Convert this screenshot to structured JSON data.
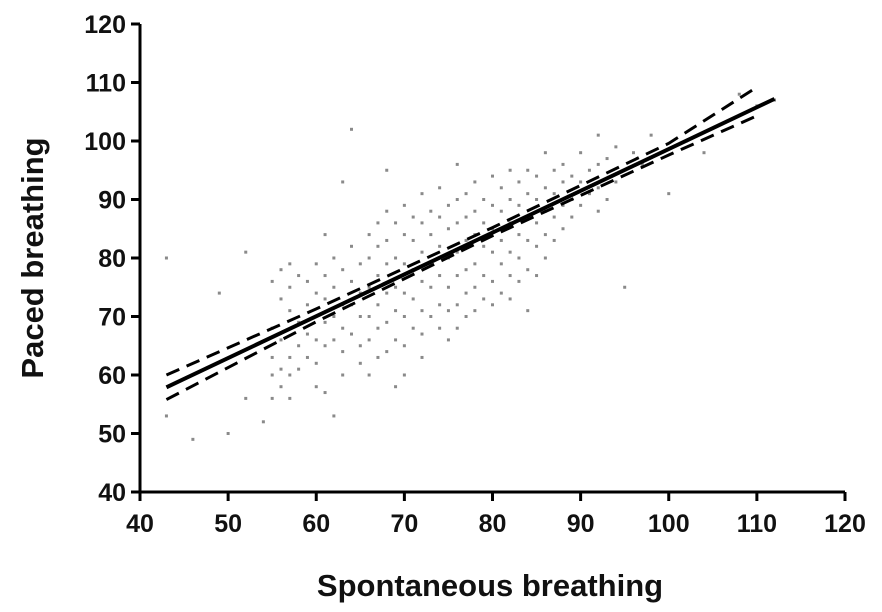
{
  "chart_data": {
    "type": "scatter",
    "title": "",
    "xlabel": "Spontaneous breathing",
    "ylabel": "Paced breathing",
    "xlim": [
      40,
      120
    ],
    "ylim": [
      40,
      120
    ],
    "xticks": [
      40,
      50,
      60,
      70,
      80,
      90,
      100,
      110,
      120
    ],
    "yticks": [
      40,
      50,
      60,
      70,
      80,
      90,
      100,
      110,
      120
    ],
    "grid": false,
    "legend": "none",
    "colors": {
      "points": "#8a8a8a",
      "fit": "#000000",
      "confidence": "#000000"
    },
    "regression": {
      "x_range": [
        43,
        112
      ],
      "y_at_x_start": 57.9,
      "y_at_x_end": 107.2
    },
    "confidence_band": {
      "upper": [
        [
          43,
          60.0
        ],
        [
          60,
          71.3
        ],
        [
          80,
          85.2
        ],
        [
          100,
          99.6
        ],
        [
          110,
          109.2
        ]
      ],
      "lower": [
        [
          43,
          55.8
        ],
        [
          60,
          69.1
        ],
        [
          80,
          83.8
        ],
        [
          100,
          97.6
        ],
        [
          110,
          104.3
        ]
      ]
    },
    "points": [
      [
        43,
        80
      ],
      [
        43,
        53
      ],
      [
        46,
        49
      ],
      [
        49,
        74
      ],
      [
        50,
        50
      ],
      [
        52,
        81
      ],
      [
        52,
        56
      ],
      [
        54,
        52
      ],
      [
        55,
        76
      ],
      [
        55,
        68
      ],
      [
        55,
        63
      ],
      [
        55,
        60
      ],
      [
        55,
        56
      ],
      [
        56,
        78
      ],
      [
        56,
        73
      ],
      [
        56,
        66
      ],
      [
        56,
        61
      ],
      [
        56,
        58
      ],
      [
        57,
        79
      ],
      [
        57,
        75
      ],
      [
        57,
        71
      ],
      [
        57,
        63
      ],
      [
        57,
        60
      ],
      [
        57,
        56
      ],
      [
        58,
        77
      ],
      [
        58,
        69
      ],
      [
        58,
        65
      ],
      [
        58,
        61
      ],
      [
        59,
        76
      ],
      [
        59,
        72
      ],
      [
        59,
        67
      ],
      [
        59,
        63
      ],
      [
        60,
        79
      ],
      [
        60,
        74
      ],
      [
        60,
        66
      ],
      [
        60,
        62
      ],
      [
        60,
        58
      ],
      [
        61,
        84
      ],
      [
        61,
        77
      ],
      [
        61,
        73
      ],
      [
        61,
        69
      ],
      [
        61,
        65
      ],
      [
        61,
        57
      ],
      [
        62,
        80
      ],
      [
        62,
        75
      ],
      [
        62,
        70
      ],
      [
        62,
        66
      ],
      [
        62,
        53
      ],
      [
        63,
        93
      ],
      [
        63,
        78
      ],
      [
        63,
        72
      ],
      [
        63,
        68
      ],
      [
        63,
        64
      ],
      [
        63,
        60
      ],
      [
        64,
        102
      ],
      [
        64,
        82
      ],
      [
        64,
        76
      ],
      [
        64,
        72
      ],
      [
        64,
        67
      ],
      [
        65,
        79
      ],
      [
        65,
        74
      ],
      [
        65,
        70
      ],
      [
        65,
        65
      ],
      [
        65,
        62
      ],
      [
        66,
        84
      ],
      [
        66,
        80
      ],
      [
        66,
        75
      ],
      [
        66,
        70
      ],
      [
        66,
        66
      ],
      [
        66,
        60
      ],
      [
        67,
        86
      ],
      [
        67,
        82
      ],
      [
        67,
        77
      ],
      [
        67,
        72
      ],
      [
        67,
        68
      ],
      [
        67,
        63
      ],
      [
        68,
        95
      ],
      [
        68,
        88
      ],
      [
        68,
        83
      ],
      [
        68,
        79
      ],
      [
        68,
        74
      ],
      [
        68,
        69
      ],
      [
        68,
        64
      ],
      [
        69,
        86
      ],
      [
        69,
        80
      ],
      [
        69,
        75
      ],
      [
        69,
        71
      ],
      [
        69,
        66
      ],
      [
        69,
        58
      ],
      [
        70,
        89
      ],
      [
        70,
        84
      ],
      [
        70,
        79
      ],
      [
        70,
        74
      ],
      [
        70,
        70
      ],
      [
        70,
        65
      ],
      [
        70,
        60
      ],
      [
        71,
        87
      ],
      [
        71,
        83
      ],
      [
        71,
        78
      ],
      [
        71,
        73
      ],
      [
        71,
        68
      ],
      [
        72,
        91
      ],
      [
        72,
        86
      ],
      [
        72,
        81
      ],
      [
        72,
        76
      ],
      [
        72,
        71
      ],
      [
        72,
        67
      ],
      [
        72,
        63
      ],
      [
        73,
        88
      ],
      [
        73,
        84
      ],
      [
        73,
        79
      ],
      [
        73,
        75
      ],
      [
        73,
        70
      ],
      [
        74,
        92
      ],
      [
        74,
        87
      ],
      [
        74,
        82
      ],
      [
        74,
        77
      ],
      [
        74,
        72
      ],
      [
        74,
        68
      ],
      [
        75,
        89
      ],
      [
        75,
        85
      ],
      [
        75,
        80
      ],
      [
        75,
        75
      ],
      [
        75,
        71
      ],
      [
        75,
        66
      ],
      [
        76,
        96
      ],
      [
        76,
        90
      ],
      [
        76,
        86
      ],
      [
        76,
        81
      ],
      [
        76,
        77
      ],
      [
        76,
        72
      ],
      [
        76,
        68
      ],
      [
        77,
        91
      ],
      [
        77,
        87
      ],
      [
        77,
        83
      ],
      [
        77,
        78
      ],
      [
        77,
        74
      ],
      [
        77,
        70
      ],
      [
        78,
        93
      ],
      [
        78,
        88
      ],
      [
        78,
        84
      ],
      [
        78,
        79
      ],
      [
        78,
        75
      ],
      [
        78,
        71
      ],
      [
        79,
        90
      ],
      [
        79,
        86
      ],
      [
        79,
        82
      ],
      [
        79,
        77
      ],
      [
        79,
        73
      ],
      [
        80,
        94
      ],
      [
        80,
        89
      ],
      [
        80,
        85
      ],
      [
        80,
        81
      ],
      [
        80,
        76
      ],
      [
        80,
        72
      ],
      [
        81,
        92
      ],
      [
        81,
        88
      ],
      [
        81,
        83
      ],
      [
        81,
        79
      ],
      [
        81,
        74
      ],
      [
        82,
        95
      ],
      [
        82,
        90
      ],
      [
        82,
        86
      ],
      [
        82,
        81
      ],
      [
        82,
        77
      ],
      [
        82,
        73
      ],
      [
        83,
        93
      ],
      [
        83,
        89
      ],
      [
        83,
        84
      ],
      [
        83,
        80
      ],
      [
        83,
        76
      ],
      [
        84,
        95
      ],
      [
        84,
        91
      ],
      [
        84,
        87
      ],
      [
        84,
        83
      ],
      [
        84,
        78
      ],
      [
        84,
        71
      ],
      [
        85,
        94
      ],
      [
        85,
        90
      ],
      [
        85,
        86
      ],
      [
        85,
        82
      ],
      [
        85,
        77
      ],
      [
        86,
        98
      ],
      [
        86,
        92
      ],
      [
        86,
        88
      ],
      [
        86,
        84
      ],
      [
        86,
        80
      ],
      [
        87,
        95
      ],
      [
        87,
        91
      ],
      [
        87,
        87
      ],
      [
        87,
        83
      ],
      [
        88,
        96
      ],
      [
        88,
        93
      ],
      [
        88,
        89
      ],
      [
        88,
        85
      ],
      [
        89,
        94
      ],
      [
        89,
        90
      ],
      [
        89,
        87
      ],
      [
        90,
        98
      ],
      [
        90,
        93
      ],
      [
        90,
        89
      ],
      [
        91,
        95
      ],
      [
        91,
        91
      ],
      [
        92,
        101
      ],
      [
        92,
        96
      ],
      [
        92,
        92
      ],
      [
        92,
        88
      ],
      [
        93,
        97
      ],
      [
        93,
        90
      ],
      [
        94,
        99
      ],
      [
        94,
        93
      ],
      [
        95,
        75
      ],
      [
        96,
        98
      ],
      [
        97,
        96
      ],
      [
        98,
        101
      ],
      [
        100,
        91
      ],
      [
        102,
        100
      ],
      [
        104,
        98
      ],
      [
        108,
        108
      ],
      [
        110,
        106
      ],
      [
        112,
        107
      ]
    ]
  }
}
